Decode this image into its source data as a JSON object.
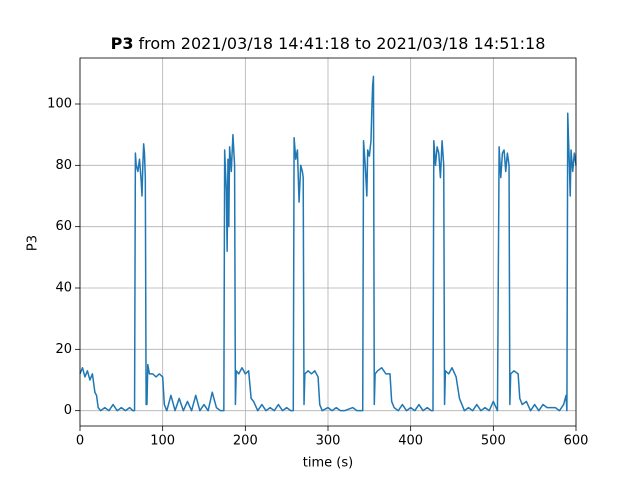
{
  "chart_data": {
    "type": "line",
    "title_bold": "P3",
    "title": "from 2021/03/18 14:41:18 to 2021/03/18 14:51:18",
    "xlabel": "time (s)",
    "ylabel": "P3",
    "xlim": [
      0,
      600
    ],
    "xticks": [
      0,
      100,
      200,
      300,
      400,
      500,
      600
    ],
    "ylim": [
      -5,
      115
    ],
    "yticks": [
      0,
      20,
      40,
      60,
      80,
      100
    ],
    "grid": true,
    "series": [
      {
        "name": "P3",
        "color": "#1f77b4",
        "x": [
          0,
          3,
          6,
          9,
          12,
          15,
          18,
          20,
          22,
          25,
          30,
          35,
          40,
          45,
          50,
          55,
          60,
          64,
          66,
          67,
          68,
          70,
          72,
          74,
          75,
          76,
          77,
          78,
          79,
          80,
          81,
          82,
          84,
          88,
          92,
          96,
          100,
          102,
          105,
          110,
          115,
          120,
          125,
          130,
          135,
          140,
          145,
          150,
          155,
          160,
          165,
          170,
          174,
          175,
          176,
          177,
          178,
          179,
          180,
          181,
          183,
          185,
          187,
          188,
          189,
          192,
          196,
          200,
          204,
          207,
          210,
          215,
          220,
          225,
          230,
          235,
          240,
          245,
          250,
          255,
          258,
          259,
          261,
          263,
          265,
          267,
          269,
          270,
          271,
          272,
          276,
          280,
          284,
          288,
          290,
          293,
          300,
          305,
          310,
          315,
          320,
          330,
          335,
          340,
          342,
          343,
          345,
          347,
          348,
          350,
          352,
          353,
          354,
          355,
          356,
          357,
          360,
          365,
          370,
          375,
          377,
          380,
          385,
          390,
          395,
          400,
          405,
          410,
          415,
          420,
          425,
          427,
          428,
          430,
          432,
          434,
          436,
          438,
          440,
          441,
          442,
          446,
          450,
          455,
          459,
          462,
          465,
          470,
          475,
          480,
          485,
          490,
          495,
          500,
          505,
          507,
          509,
          511,
          513,
          515,
          517,
          519,
          520,
          521,
          525,
          530,
          532,
          535,
          540,
          545,
          550,
          555,
          560,
          565,
          575,
          580,
          585,
          588,
          589,
          590,
          591,
          592,
          593,
          594,
          596,
          598,
          600
        ],
        "values": [
          12,
          14,
          11,
          13,
          10,
          12,
          6,
          5,
          1,
          0,
          1,
          0,
          2,
          0,
          1,
          0,
          1,
          0,
          0,
          84,
          80,
          78,
          82,
          75,
          70,
          80,
          87,
          84,
          76,
          2,
          2,
          15,
          12,
          12,
          11,
          12,
          11,
          2,
          0,
          5,
          0,
          4,
          0,
          3,
          0,
          5,
          0,
          2,
          0,
          6,
          1,
          0,
          0,
          85,
          78,
          72,
          52,
          82,
          60,
          86,
          78,
          90,
          80,
          2,
          13,
          12,
          14,
          12,
          13,
          4,
          3,
          0,
          2,
          0,
          1,
          0,
          2,
          0,
          1,
          0,
          0,
          89,
          82,
          85,
          68,
          80,
          78,
          76,
          2,
          12,
          13,
          12,
          13,
          11,
          2,
          0,
          1,
          0,
          1,
          0,
          0,
          1,
          0,
          0,
          0,
          88,
          80,
          70,
          85,
          83,
          88,
          98,
          106,
          109,
          2,
          12,
          13,
          14,
          12,
          12,
          3,
          1,
          0,
          2,
          0,
          1,
          0,
          2,
          0,
          1,
          0,
          0,
          88,
          80,
          86,
          84,
          76,
          88,
          80,
          2,
          13,
          12,
          14,
          11,
          4,
          2,
          0,
          1,
          0,
          2,
          0,
          1,
          0,
          3,
          0,
          86,
          76,
          84,
          85,
          78,
          84,
          80,
          2,
          12,
          13,
          12,
          4,
          2,
          3,
          0,
          2,
          0,
          2,
          1,
          1,
          0,
          2,
          5,
          0,
          97,
          88,
          80,
          70,
          85,
          78,
          84,
          80
        ]
      }
    ]
  }
}
